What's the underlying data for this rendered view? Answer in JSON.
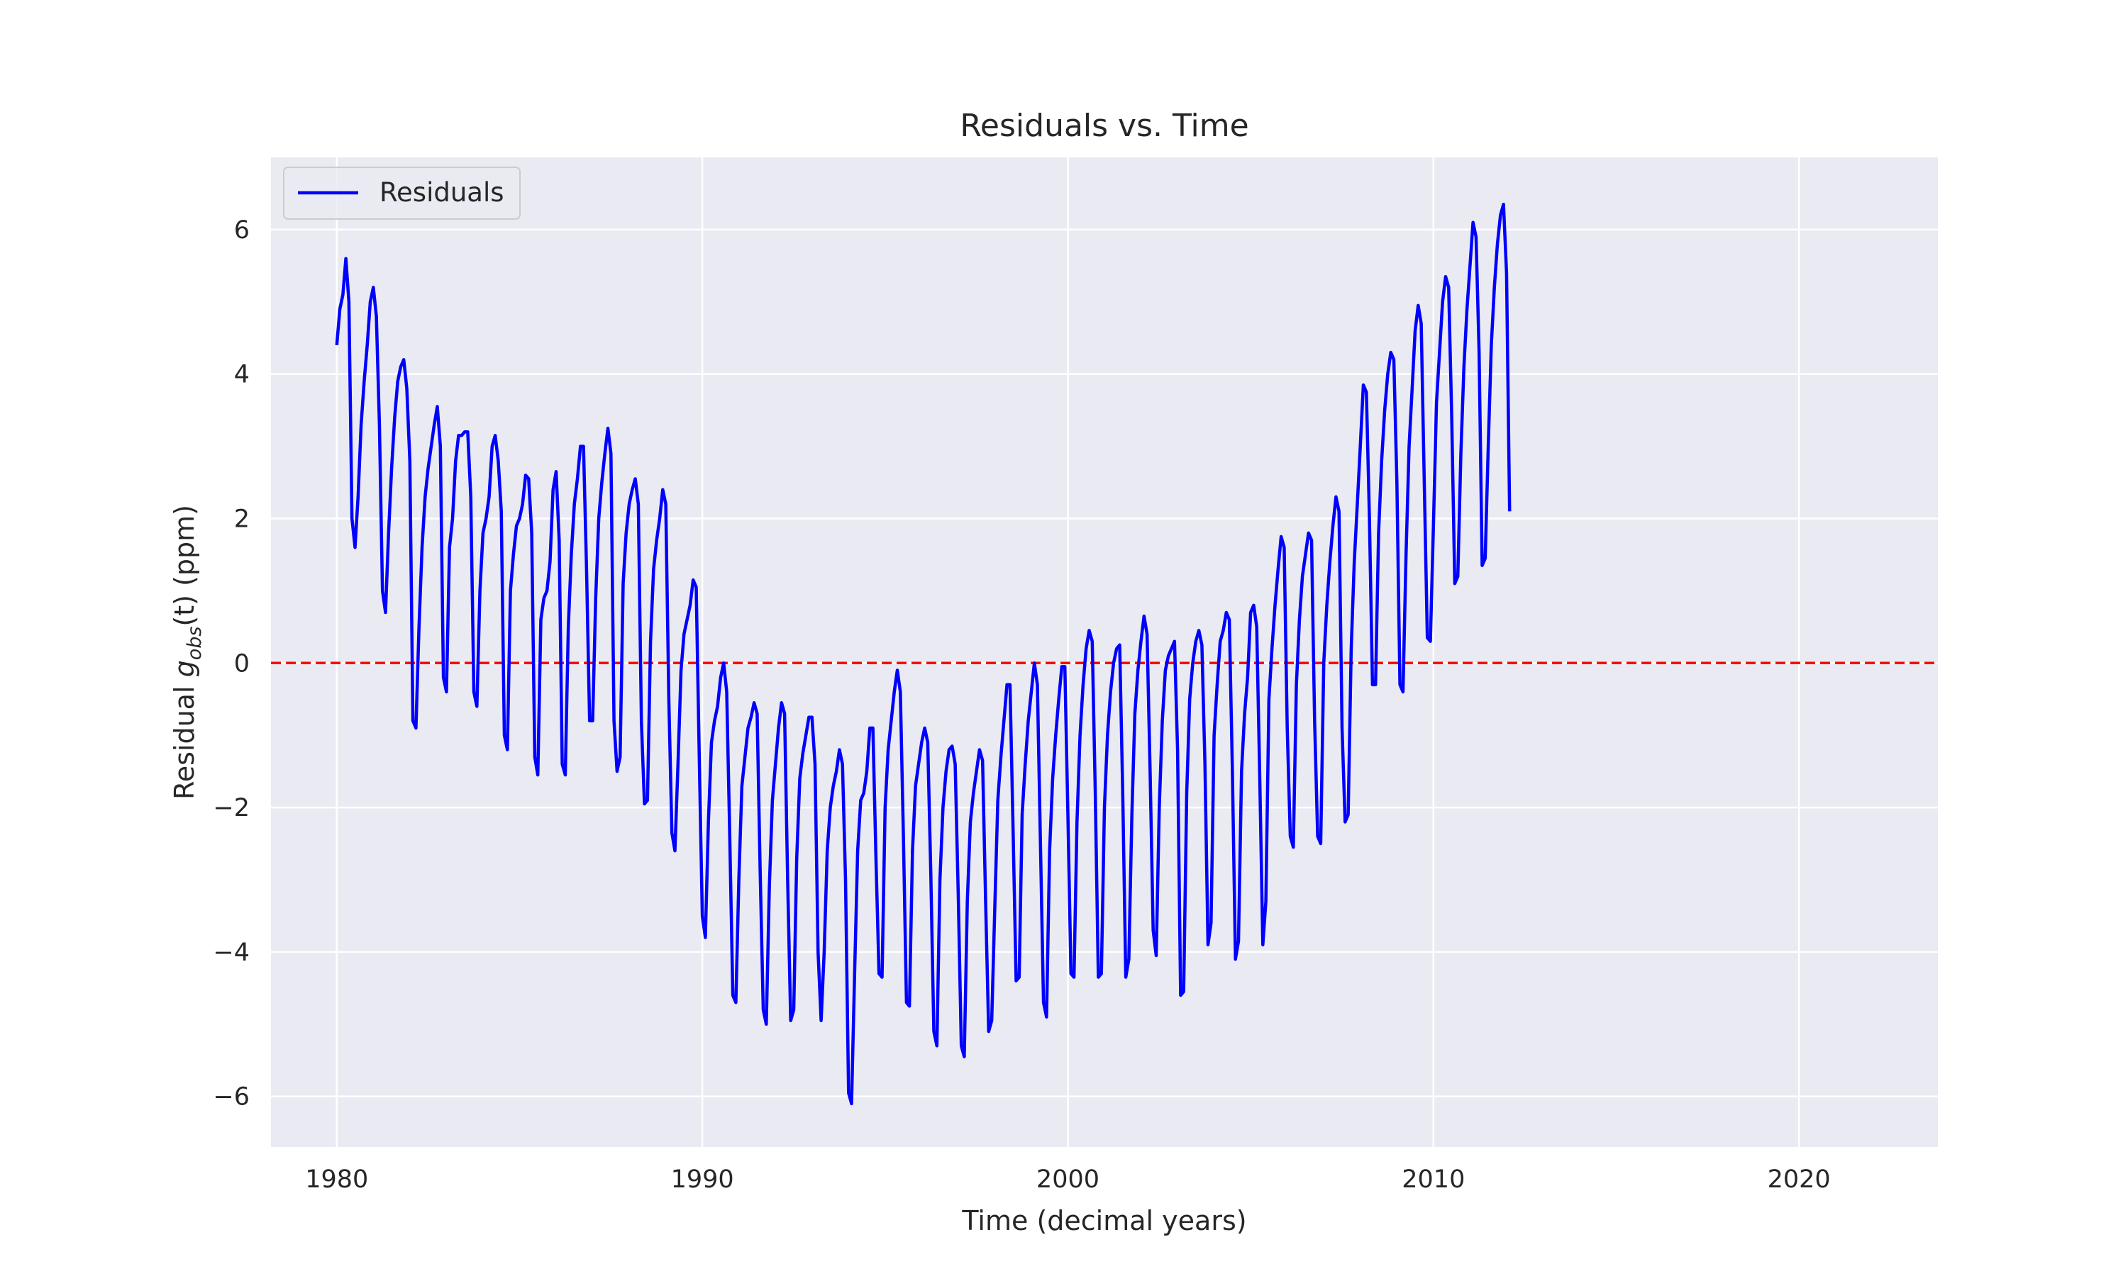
{
  "chart_data": {
    "type": "line",
    "title": "Residuals vs. Time",
    "xlabel": "Time (decimal years)",
    "ylabel": {
      "prefix": "Residual ",
      "symbol": "g",
      "subscript": "obs",
      "argument": "(t)",
      "suffix": " (ppm)"
    },
    "xlim": [
      1978.2,
      1983.8
    ],
    "xlim_full": [
      1978.2,
      2023.8
    ],
    "ylim": [
      -6.7,
      7.0
    ],
    "x_ticks": [
      1980,
      1990,
      2000,
      2010,
      2020
    ],
    "x_tick_labels": [
      "1980",
      "1990",
      "2000",
      "2010",
      "2020"
    ],
    "y_ticks": [
      -6,
      -4,
      -2,
      0,
      2,
      4,
      6
    ],
    "y_tick_labels": [
      "−6",
      "−4",
      "−2",
      "0",
      "2",
      "4",
      "6"
    ],
    "grid": true,
    "legend_position": "top-left",
    "reference_line": {
      "y": 0,
      "style": "dashed",
      "color": "#ff0000"
    },
    "series": [
      {
        "name": "Residuals",
        "color": "#0000ff",
        "x_start": 1980.0,
        "x_step": 0.0833333,
        "values": [
          4.4,
          4.9,
          5.1,
          5.6,
          5.0,
          2.0,
          1.6,
          2.3,
          3.3,
          3.9,
          4.4,
          5.0,
          5.2,
          4.8,
          3.3,
          1.0,
          0.7,
          1.8,
          2.7,
          3.4,
          3.9,
          4.1,
          4.2,
          3.8,
          2.8,
          -0.8,
          -0.9,
          0.5,
          1.6,
          2.3,
          2.7,
          3.0,
          3.3,
          3.55,
          3.0,
          -0.2,
          -0.4,
          1.6,
          2.0,
          2.8,
          3.15,
          3.15,
          3.2,
          3.2,
          2.3,
          -0.4,
          -0.6,
          1.0,
          1.8,
          2.0,
          2.3,
          3.0,
          3.15,
          2.8,
          2.1,
          -1.0,
          -1.2,
          1.0,
          1.5,
          1.9,
          2.0,
          2.2,
          2.6,
          2.55,
          1.8,
          -1.3,
          -1.55,
          0.6,
          0.9,
          1.0,
          1.4,
          2.4,
          2.65,
          1.7,
          -1.4,
          -1.55,
          0.5,
          1.5,
          2.2,
          2.55,
          3.0,
          3.0,
          1.3,
          -0.8,
          -0.8,
          0.9,
          2.0,
          2.5,
          2.9,
          3.25,
          2.9,
          -0.8,
          -1.5,
          -1.3,
          1.1,
          1.8,
          2.2,
          2.4,
          2.55,
          2.2,
          -0.8,
          -1.95,
          -1.9,
          0.3,
          1.3,
          1.7,
          2.0,
          2.4,
          2.2,
          -0.5,
          -2.35,
          -2.6,
          -1.4,
          -0.1,
          0.4,
          0.6,
          0.8,
          1.15,
          1.05,
          -1.3,
          -3.5,
          -3.8,
          -2.2,
          -1.1,
          -0.8,
          -0.6,
          -0.2,
          0.0,
          -0.4,
          -2.4,
          -4.6,
          -4.7,
          -3.0,
          -1.7,
          -1.3,
          -0.9,
          -0.75,
          -0.55,
          -0.7,
          -2.9,
          -4.8,
          -5.0,
          -3.1,
          -1.9,
          -1.4,
          -0.9,
          -0.55,
          -0.7,
          -3.0,
          -4.95,
          -4.8,
          -2.7,
          -1.6,
          -1.25,
          -1.0,
          -0.75,
          -0.75,
          -1.4,
          -4.0,
          -4.95,
          -4.0,
          -2.6,
          -2.0,
          -1.7,
          -1.5,
          -1.2,
          -1.4,
          -3.0,
          -5.95,
          -6.1,
          -4.3,
          -2.6,
          -1.9,
          -1.8,
          -1.5,
          -0.9,
          -0.9,
          -2.7,
          -4.3,
          -4.35,
          -2.0,
          -1.2,
          -0.8,
          -0.4,
          -0.1,
          -0.4,
          -2.4,
          -4.7,
          -4.75,
          -2.6,
          -1.7,
          -1.4,
          -1.1,
          -0.9,
          -1.1,
          -2.9,
          -5.1,
          -5.3,
          -3.0,
          -2.0,
          -1.5,
          -1.2,
          -1.15,
          -1.4,
          -3.2,
          -5.3,
          -5.45,
          -3.3,
          -2.2,
          -1.8,
          -1.5,
          -1.2,
          -1.35,
          -3.3,
          -5.1,
          -4.95,
          -3.4,
          -1.9,
          -1.3,
          -0.8,
          -0.3,
          -0.3,
          -2.3,
          -4.4,
          -4.35,
          -2.1,
          -1.4,
          -0.8,
          -0.4,
          0.0,
          -0.3,
          -2.5,
          -4.7,
          -4.9,
          -2.6,
          -1.6,
          -1.0,
          -0.5,
          -0.05,
          -0.05,
          -2.1,
          -4.3,
          -4.35,
          -2.2,
          -1.0,
          -0.3,
          0.2,
          0.45,
          0.3,
          -1.8,
          -4.35,
          -4.3,
          -2.0,
          -1.0,
          -0.4,
          0.0,
          0.2,
          0.25,
          -1.8,
          -4.35,
          -4.1,
          -2.1,
          -0.7,
          -0.1,
          0.3,
          0.65,
          0.4,
          -1.5,
          -3.7,
          -4.05,
          -2.0,
          -0.8,
          -0.1,
          0.1,
          0.2,
          0.3,
          -1.2,
          -4.6,
          -4.55,
          -1.8,
          -0.5,
          0.0,
          0.3,
          0.45,
          0.25,
          -1.4,
          -3.9,
          -3.6,
          -1.0,
          -0.3,
          0.3,
          0.45,
          0.7,
          0.6,
          -1.5,
          -4.1,
          -3.85,
          -1.5,
          -0.7,
          -0.2,
          0.7,
          0.8,
          0.5,
          -1.6,
          -3.9,
          -3.3,
          -0.5,
          0.2,
          0.8,
          1.3,
          1.75,
          1.6,
          -0.9,
          -2.4,
          -2.55,
          -0.3,
          0.6,
          1.2,
          1.5,
          1.8,
          1.7,
          -0.8,
          -2.4,
          -2.5,
          0.0,
          0.8,
          1.4,
          1.9,
          2.3,
          2.1,
          -0.9,
          -2.2,
          -2.1,
          0.2,
          1.4,
          2.2,
          3.0,
          3.85,
          3.75,
          2.0,
          -0.3,
          -0.3,
          1.8,
          2.8,
          3.5,
          4.0,
          4.3,
          4.2,
          2.5,
          -0.3,
          -0.4,
          1.5,
          3.0,
          3.8,
          4.6,
          4.95,
          4.7,
          2.5,
          0.35,
          0.3,
          1.9,
          3.6,
          4.3,
          5.0,
          5.35,
          5.2,
          3.4,
          1.1,
          1.2,
          2.9,
          4.1,
          4.9,
          5.5,
          6.1,
          5.9,
          4.3,
          1.35,
          1.45,
          3.0,
          4.4,
          5.2,
          5.8,
          6.2,
          6.35,
          5.4,
          2.1
        ]
      }
    ]
  }
}
